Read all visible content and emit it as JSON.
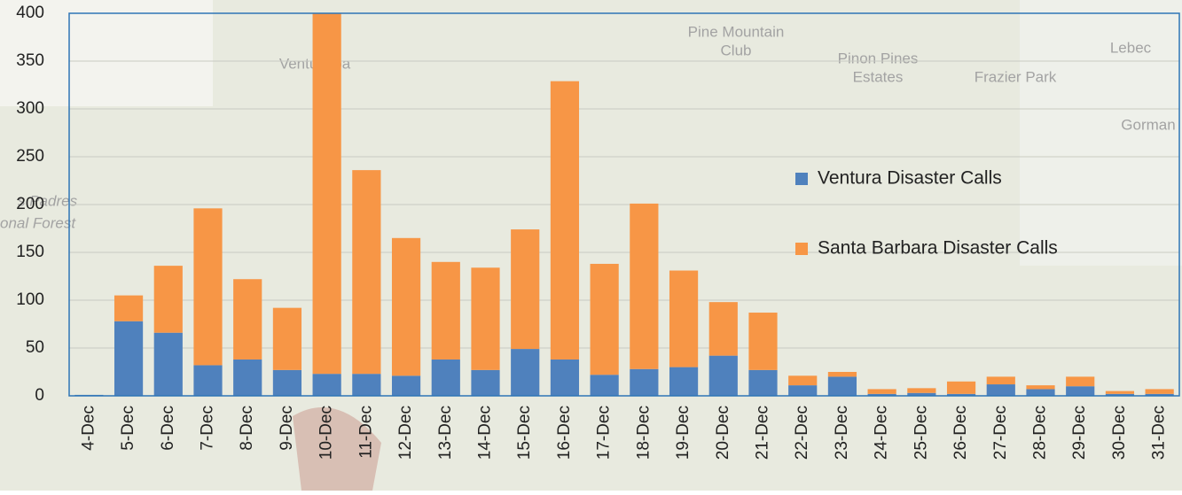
{
  "chart_data": {
    "type": "stacked_bar",
    "categories": [
      "4-Dec",
      "5-Dec",
      "6-Dec",
      "7-Dec",
      "8-Dec",
      "9-Dec",
      "10-Dec",
      "11-Dec",
      "12-Dec",
      "13-Dec",
      "14-Dec",
      "15-Dec",
      "16-Dec",
      "17-Dec",
      "18-Dec",
      "19-Dec",
      "20-Dec",
      "21-Dec",
      "22-Dec",
      "23-Dec",
      "24-Dec",
      "25-Dec",
      "26-Dec",
      "27-Dec",
      "28-Dec",
      "29-Dec",
      "30-Dec",
      "31-Dec"
    ],
    "series": [
      {
        "name": "Ventura Disaster Calls",
        "color": "#4f81bd",
        "values": [
          1,
          78,
          66,
          32,
          38,
          27,
          23,
          23,
          21,
          38,
          27,
          49,
          38,
          22,
          28,
          30,
          42,
          27,
          11,
          20,
          2,
          3,
          2,
          12,
          7,
          10,
          2,
          2
        ]
      },
      {
        "name": "Santa Barbara Disaster Calls",
        "color": "#f79646",
        "values": [
          0,
          27,
          70,
          164,
          84,
          65,
          377,
          213,
          144,
          102,
          107,
          125,
          291,
          116,
          173,
          101,
          56,
          60,
          10,
          5,
          5,
          5,
          13,
          8,
          4,
          10,
          3,
          5
        ]
      }
    ],
    "ylim": [
      0,
      400
    ],
    "yticks": [
      0,
      50,
      100,
      150,
      200,
      250,
      300,
      350,
      400
    ],
    "grid": true,
    "legend": "right"
  },
  "map_labels": [
    "Pine Mountain",
    "Club",
    "Pinon Pines",
    "Estates",
    "Frazier Park",
    "Lebec",
    "Gorman",
    "Ventucopa",
    "s Padres",
    "onal Forest"
  ]
}
